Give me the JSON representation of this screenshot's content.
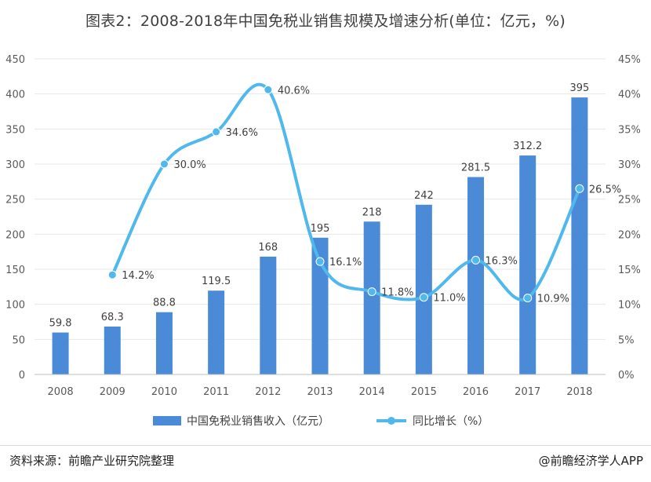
{
  "title": "图表2：2008-2018年中国免税业销售规模及增速分析(单位：亿元，%)",
  "footer": {
    "source": "资料来源：前瞻产业研究院整理",
    "credit": "@前瞻经济学人APP"
  },
  "colors": {
    "bar": "#4a8ad6",
    "line": "#4fb8ec",
    "axis_text": "#595959",
    "grid": "#e7e7e7"
  },
  "chart_data": {
    "type": "bar",
    "categories": [
      "2008",
      "2009",
      "2010",
      "2011",
      "2012",
      "2013",
      "2014",
      "2015",
      "2016",
      "2017",
      "2018"
    ],
    "series": [
      {
        "name": "中国免税业销售收入（亿元）",
        "type": "bar",
        "axis": "left",
        "values": [
          59.8,
          68.3,
          88.8,
          119.5,
          168,
          195,
          218,
          242,
          281.5,
          312.2,
          395
        ],
        "labels": [
          "59.8",
          "68.3",
          "88.8",
          "119.5",
          "168",
          "195",
          "218",
          "242",
          "281.5",
          "312.2",
          "395"
        ]
      },
      {
        "name": "同比增长（%）",
        "type": "line",
        "axis": "right",
        "values": [
          null,
          14.2,
          30.0,
          34.6,
          40.6,
          16.1,
          11.8,
          11.0,
          16.3,
          10.9,
          26.5
        ],
        "labels": [
          null,
          "14.2%",
          "30.0%",
          "34.6%",
          "40.6%",
          "16.1%",
          "11.8%",
          "11.0%",
          "16.3%",
          "10.9%",
          "26.5%"
        ]
      }
    ],
    "y_left": {
      "min": 0,
      "max": 450,
      "ticks": [
        "0",
        "50",
        "100",
        "150",
        "200",
        "250",
        "300",
        "350",
        "400",
        "450"
      ]
    },
    "y_right": {
      "min": 0,
      "max": 45,
      "ticks": [
        "0%",
        "5%",
        "10%",
        "15%",
        "20%",
        "25%",
        "30%",
        "35%",
        "40%",
        "45%"
      ]
    },
    "legend_position": "bottom"
  }
}
